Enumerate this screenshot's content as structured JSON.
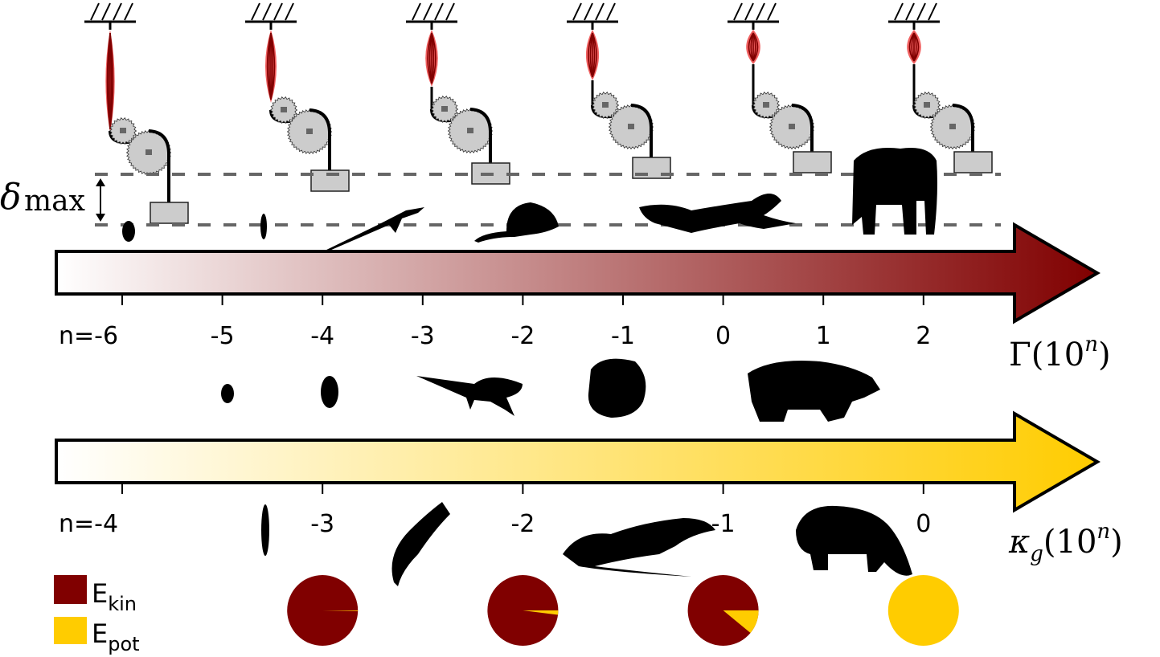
{
  "delta_label": {
    "symbol": "δ",
    "subscript": "max"
  },
  "gamma_axis": {
    "title": "Γ(10",
    "title_sup": "n",
    "title_close": ")",
    "tick_labels": [
      "n=-6",
      "-5",
      "-4",
      "-3",
      "-2",
      "-1",
      "0",
      "1",
      "2"
    ],
    "gradient": [
      "#ffffff",
      "#800000"
    ]
  },
  "kappa_axis": {
    "title": "κ",
    "title_sub": "g",
    "title_rest": "(10",
    "title_sup": "n",
    "title_close": ")",
    "tick_labels": [
      "n=-4",
      "-3",
      "-2",
      "-1",
      "0"
    ],
    "gradient": [
      "#ffffff",
      "#ffcc00"
    ]
  },
  "legend": [
    {
      "label": "E",
      "sub": "kin",
      "color": "#800000"
    },
    {
      "label": "E",
      "sub": "pot",
      "color": "#ffcc00"
    }
  ],
  "pies": [
    {
      "at_kappa_n": -3,
      "E_pot_fraction": 0.003
    },
    {
      "at_kappa_n": -2,
      "E_pot_fraction": 0.02
    },
    {
      "at_kappa_n": -1,
      "E_pot_fraction": 0.11
    },
    {
      "at_kappa_n": 0,
      "E_pot_fraction": 1.0
    }
  ],
  "muscle_systems": 6,
  "animals_top": [
    "mite",
    "ant",
    "lizard",
    "mouse",
    "cheetah",
    "elephant"
  ],
  "animals_middle": [
    "spider",
    "beetle",
    "lizard",
    "frog",
    "rhinoceros"
  ],
  "animals_bottom": [
    "ant",
    "gecko",
    "monitor-lizard",
    "hippopotamus"
  ],
  "colors": {
    "muscle": "#f06060",
    "muscle_dark": "#800000",
    "gear": "#cccccc",
    "weight": "#cccccc",
    "dash": "#666666"
  }
}
